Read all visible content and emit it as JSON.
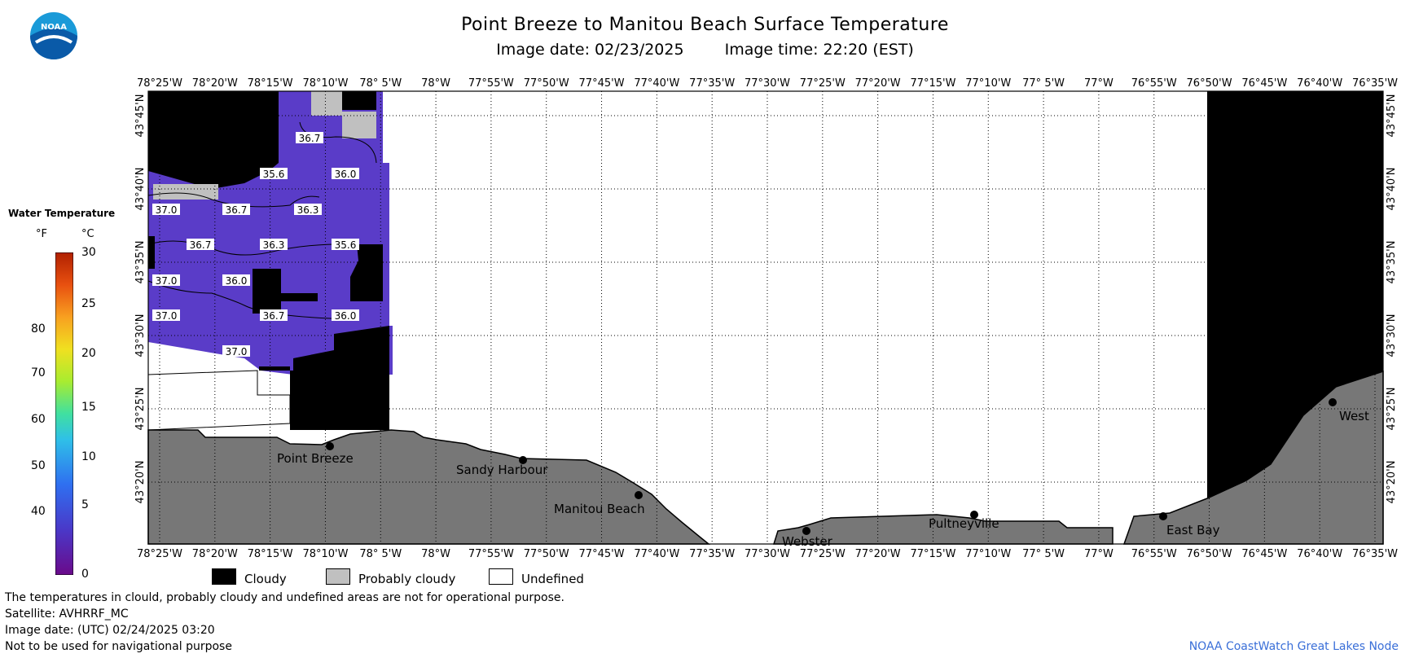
{
  "title": "Point Breeze to Manitou Beach Surface Temperature",
  "image_date": "Image date: 02/23/2025",
  "image_time": "Image time: 22:20 (EST)",
  "logo_text": "NOAA",
  "legend": {
    "title": "Water Temperature",
    "unit_f": "°F",
    "unit_c": "°C",
    "f_ticks": [
      "80",
      "70",
      "60",
      "50",
      "40"
    ],
    "c_ticks": [
      "30",
      "25",
      "20",
      "15",
      "10",
      "5",
      "0"
    ],
    "colors": [
      "#6a0a8a",
      "#4a38c8",
      "#2f6ff0",
      "#2fc0e8",
      "#40e0a0",
      "#a8ec30",
      "#f0e020",
      "#f8a020",
      "#e85010",
      "#b02000"
    ]
  },
  "map": {
    "x_ticks": [
      "78°25'W",
      "78°20'W",
      "78°15'W",
      "78°10'W",
      "78° 5'W",
      "78°W",
      "77°55'W",
      "77°50'W",
      "77°45'W",
      "77°40'W",
      "77°35'W",
      "77°30'W",
      "77°25'W",
      "77°20'W",
      "77°15'W",
      "77°10'W",
      "77° 5'W",
      "77°W",
      "76°55'W",
      "76°50'W",
      "76°45'W",
      "76°40'W",
      "76°35'W"
    ],
    "y_ticks": [
      "43°45'N",
      "43°40'N",
      "43°35'N",
      "43°30'N",
      "43°25'N",
      "43°20'N"
    ],
    "isotherms": [
      "36.7",
      "35.6",
      "36.0",
      "37.0",
      "36.7",
      "36.3",
      "36.7",
      "36.3",
      "35.6",
      "37.0",
      "36.0",
      "37.0",
      "36.7",
      "36.0",
      "37.0"
    ],
    "places": [
      "Point Breeze",
      "Sandy Harbour",
      "Manitou Beach",
      "Webster",
      "Pultneyville",
      "East Bay",
      "West"
    ],
    "colors": {
      "water": "#5a3cc8",
      "land": "#7a7a7a",
      "cloud": "#000000",
      "prob_cloud": "#c0c0c0"
    }
  },
  "key": {
    "cloudy": "Cloudy",
    "probably_cloudy": "Probably cloudy",
    "undefined": "Undefined"
  },
  "footer": {
    "line1": "The temperatures in clould, probably cloudy and undefined areas are not for operational purpose.",
    "line2": "Satellite: AVHRRF_MC",
    "line3": "Image date: (UTC) 02/24/2025  03:20",
    "line4": "Not to be used for navigational purpose"
  },
  "credit": "NOAA CoastWatch Great Lakes Node"
}
